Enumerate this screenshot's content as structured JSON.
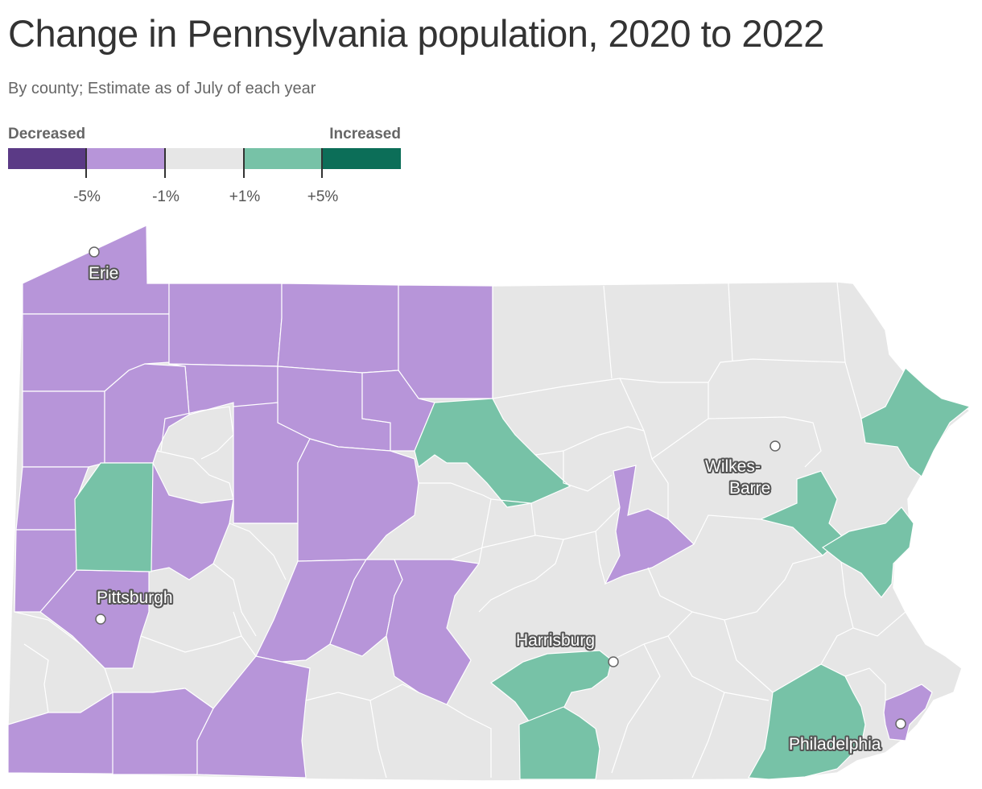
{
  "header": {
    "title": "Change in Pennsylvania population, 2020 to 2022",
    "subtitle": "By county; Estimate as of July of each year"
  },
  "legend": {
    "left_label": "Decreased",
    "right_label": "Increased",
    "colors": [
      "#5b3a86",
      "#b795d9",
      "#e6e6e6",
      "#77c2a7",
      "#0c6e58"
    ],
    "ticks": [
      "-5%",
      "-1%",
      "+1%",
      "+5%"
    ]
  },
  "map": {
    "land_color": "#e6e6e6",
    "border_color": "#ffffff",
    "decreased_color": "#b795d9",
    "increased_color": "#77c2a7",
    "cities": [
      {
        "name": "Erie"
      },
      {
        "name": "Pittsburgh"
      },
      {
        "name": "Wilkes-",
        "name2": "Barre"
      },
      {
        "name": "Harrisburg"
      },
      {
        "name": "Philadelphia"
      }
    ]
  }
}
